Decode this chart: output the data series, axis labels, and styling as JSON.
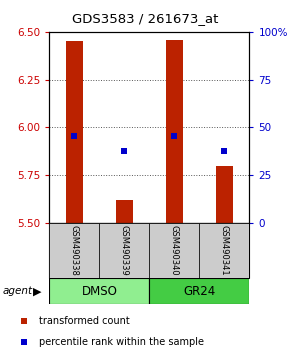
{
  "title": "GDS3583 / 261673_at",
  "samples": [
    "GSM490338",
    "GSM490339",
    "GSM490340",
    "GSM490341"
  ],
  "groups": [
    {
      "label": "DMSO",
      "samples": [
        0,
        1
      ],
      "color": "#90ee90"
    },
    {
      "label": "GR24",
      "samples": [
        2,
        3
      ],
      "color": "#44cc44"
    }
  ],
  "ylim_left": [
    5.5,
    6.5
  ],
  "ylim_right": [
    0,
    100
  ],
  "yticks_left": [
    5.5,
    5.75,
    6.0,
    6.25,
    6.5
  ],
  "yticks_right": [
    0,
    25,
    50,
    75,
    100
  ],
  "bar_bottoms": [
    5.5,
    5.5,
    5.5,
    5.5
  ],
  "bar_tops": [
    6.45,
    5.62,
    6.46,
    5.8
  ],
  "blue_y": [
    5.955,
    5.875,
    5.955,
    5.875
  ],
  "bar_color": "#bb2200",
  "blue_color": "#0000cc",
  "legend_items": [
    {
      "color": "#bb2200",
      "label": "transformed count"
    },
    {
      "color": "#0000cc",
      "label": "percentile rank within the sample"
    }
  ],
  "background_color": "#ffffff",
  "sample_box_color": "#cccccc",
  "agent_label": "agent",
  "left_yaxis_color": "#cc0000",
  "right_yaxis_color": "#0000cc",
  "bar_width": 0.35
}
